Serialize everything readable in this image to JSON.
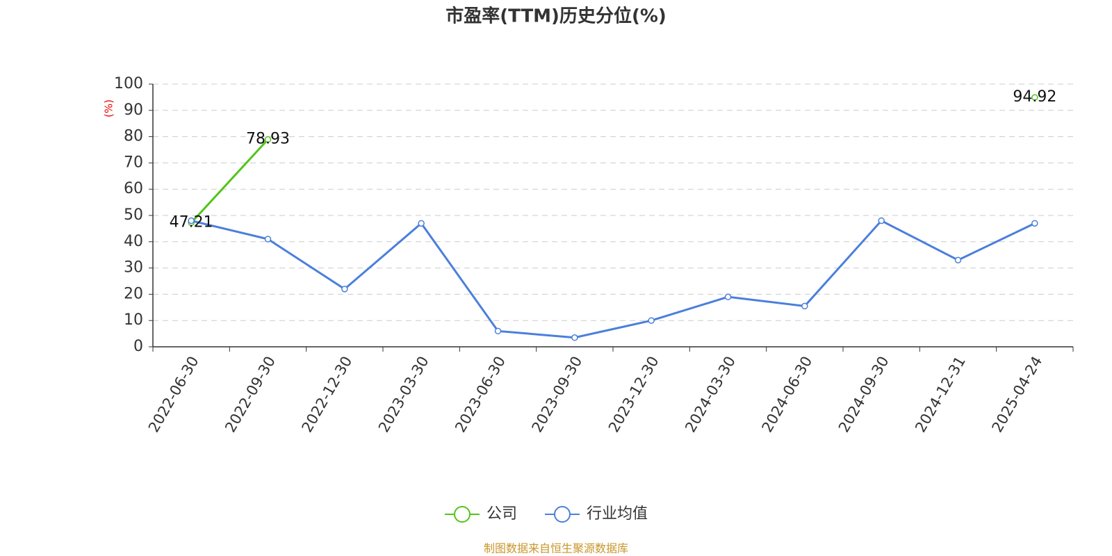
{
  "chart_data": {
    "type": "line",
    "title": "市盈率(TTM)历史分位(%)",
    "y_label": "(%)",
    "source": "制图数据来自恒生聚源数据库",
    "categories": [
      "2022-06-30",
      "2022-09-30",
      "2022-12-30",
      "2023-03-30",
      "2023-06-30",
      "2023-09-30",
      "2023-12-30",
      "2024-03-30",
      "2024-06-30",
      "2024-09-30",
      "2024-12-31",
      "2025-04-24"
    ],
    "series": [
      {
        "name": "公司",
        "color": "#52c41a",
        "values": [
          47.21,
          78.93,
          null,
          null,
          null,
          null,
          null,
          null,
          null,
          null,
          null,
          94.92
        ],
        "show_labels": true
      },
      {
        "name": "行业均值",
        "color": "#4a7fdc",
        "values": [
          48,
          41,
          22,
          47,
          6,
          3.5,
          10,
          19,
          15.5,
          48,
          33,
          47
        ],
        "show_labels": false
      }
    ],
    "ylim": [
      0,
      100
    ],
    "yticks": [
      0,
      10,
      20,
      30,
      40,
      50,
      60,
      70,
      80,
      90,
      100
    ],
    "grid": true
  }
}
